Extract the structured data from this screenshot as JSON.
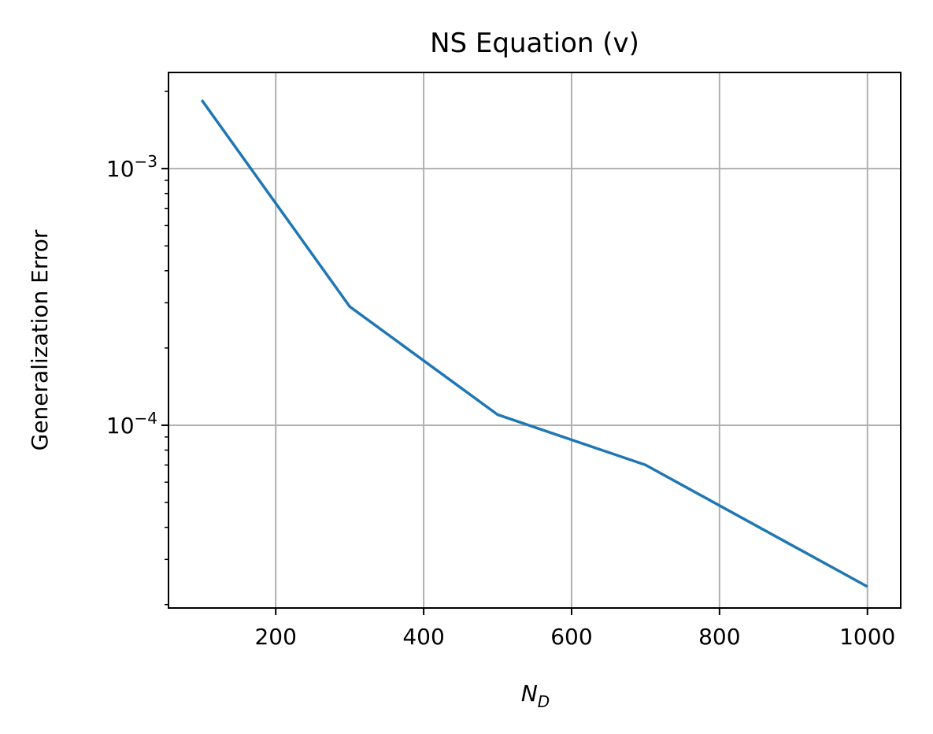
{
  "chart_data": {
    "type": "line",
    "title": "NS Equation (v)",
    "xlabel": {
      "base": "N",
      "sub": "D"
    },
    "ylabel": "Generalization Error",
    "x": [
      100,
      300,
      500,
      700,
      1000
    ],
    "series": [
      {
        "values": [
          0.00185,
          0.00029,
          0.00011,
          7e-05,
          2.35e-05
        ],
        "color": "#1f77b4"
      }
    ],
    "xlim": [
      55,
      1045
    ],
    "ylim": [
      1.94e-05,
      0.00237
    ],
    "yscale": "log",
    "xticks": [
      {
        "value": 200,
        "label": "200"
      },
      {
        "value": 400,
        "label": "400"
      },
      {
        "value": 600,
        "label": "600"
      },
      {
        "value": 800,
        "label": "800"
      },
      {
        "value": 1000,
        "label": "1000"
      }
    ],
    "yticks": [
      {
        "value": 0.001,
        "base": "10",
        "exp": "−3"
      },
      {
        "value": 0.0001,
        "base": "10",
        "exp": "−4"
      }
    ],
    "grid": true,
    "grid_color": "#b0b0b0"
  }
}
